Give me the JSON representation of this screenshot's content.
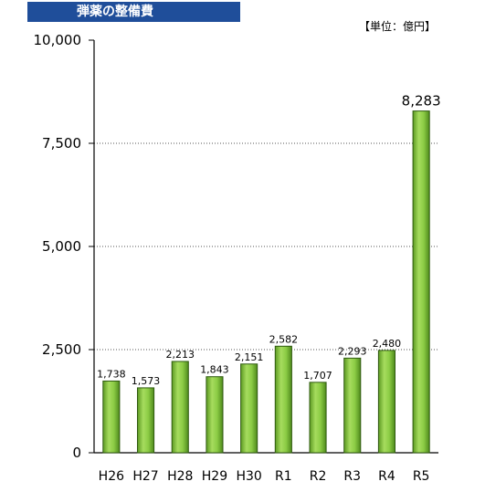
{
  "title": "弾薬の整備費",
  "unit": "【単位：億円】",
  "chart_data": {
    "type": "bar",
    "title": "弾薬の整備費",
    "unit": "【単位：億円】",
    "categories": [
      "H26",
      "H27",
      "H28",
      "H29",
      "H30",
      "R1",
      "R2",
      "R3",
      "R4",
      "R5"
    ],
    "values": [
      1738,
      1573,
      2213,
      1843,
      2151,
      2582,
      1707,
      2293,
      2480,
      8283
    ],
    "value_labels": [
      "1,738",
      "1,573",
      "2,213",
      "1,843",
      "2,151",
      "2,582",
      "1,707",
      "2,293",
      "2,480",
      "8,283"
    ],
    "ylim": [
      0,
      10000
    ],
    "yticks": [
      0,
      2500,
      5000,
      7500,
      10000
    ],
    "ytick_labels": [
      "0",
      "2,500",
      "5,000",
      "7,500",
      "10,000"
    ],
    "grid": "horizontal-dotted",
    "bar_color": "#7cc13a",
    "bar_edge_color": "#2f5a10"
  }
}
